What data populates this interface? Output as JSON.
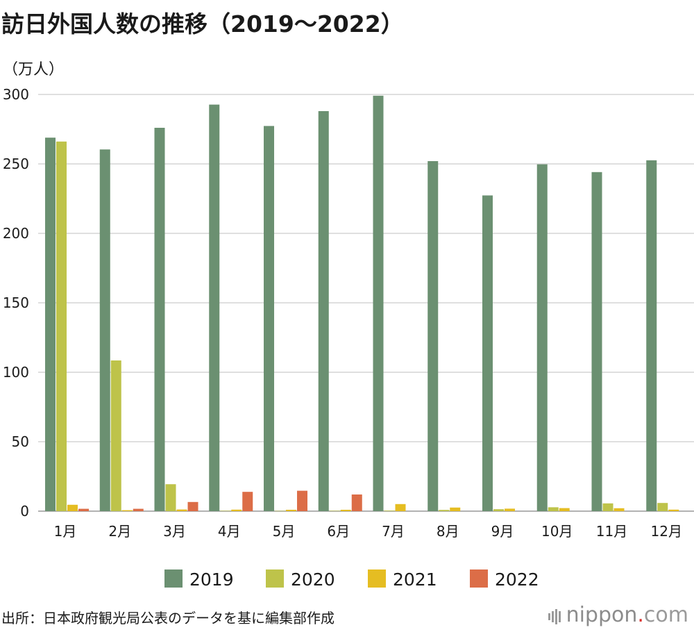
{
  "header": {
    "title": "訪日外国人数の推移（2019〜2022）",
    "unit": "（万人）"
  },
  "footer": {
    "source": "出所：日本政府観光局公表のデータを基に編集部作成",
    "brand_main": "nippon",
    "brand_dot": ".",
    "brand_suffix": "com"
  },
  "colors": {
    "2019": "#6b9071",
    "2020": "#bec34a",
    "2021": "#e5bd22",
    "2022": "#dc6d47",
    "grid": "#cccccc"
  },
  "chart_data": {
    "type": "bar",
    "title": "訪日外国人数の推移（2019〜2022）",
    "ylabel": "（万人）",
    "xlabel": "",
    "ylim": [
      0,
      300
    ],
    "yticks": [
      0,
      50,
      100,
      150,
      200,
      250,
      300
    ],
    "grid": true,
    "legend": "bottom",
    "categories": [
      "1月",
      "2月",
      "3月",
      "4月",
      "5月",
      "6月",
      "7月",
      "8月",
      "9月",
      "10月",
      "11月",
      "12月"
    ],
    "series": [
      {
        "name": "2019",
        "values": [
          268.9,
          260.4,
          276.0,
          292.7,
          277.3,
          288.0,
          299.1,
          252.0,
          227.3,
          249.7,
          244.1,
          252.6
        ]
      },
      {
        "name": "2020",
        "values": [
          266.1,
          108.5,
          19.4,
          0.3,
          0.2,
          0.3,
          0.4,
          0.9,
          1.4,
          2.8,
          5.6,
          5.9
        ]
      },
      {
        "name": "2021",
        "values": [
          4.6,
          0.7,
          1.2,
          1.1,
          1.0,
          1.0,
          5.1,
          2.6,
          1.8,
          2.2,
          2.1,
          1.1
        ]
      },
      {
        "name": "2022",
        "values": [
          1.7,
          1.7,
          6.6,
          13.9,
          14.7,
          12.0,
          0,
          0,
          0,
          0,
          0,
          0
        ]
      }
    ]
  }
}
